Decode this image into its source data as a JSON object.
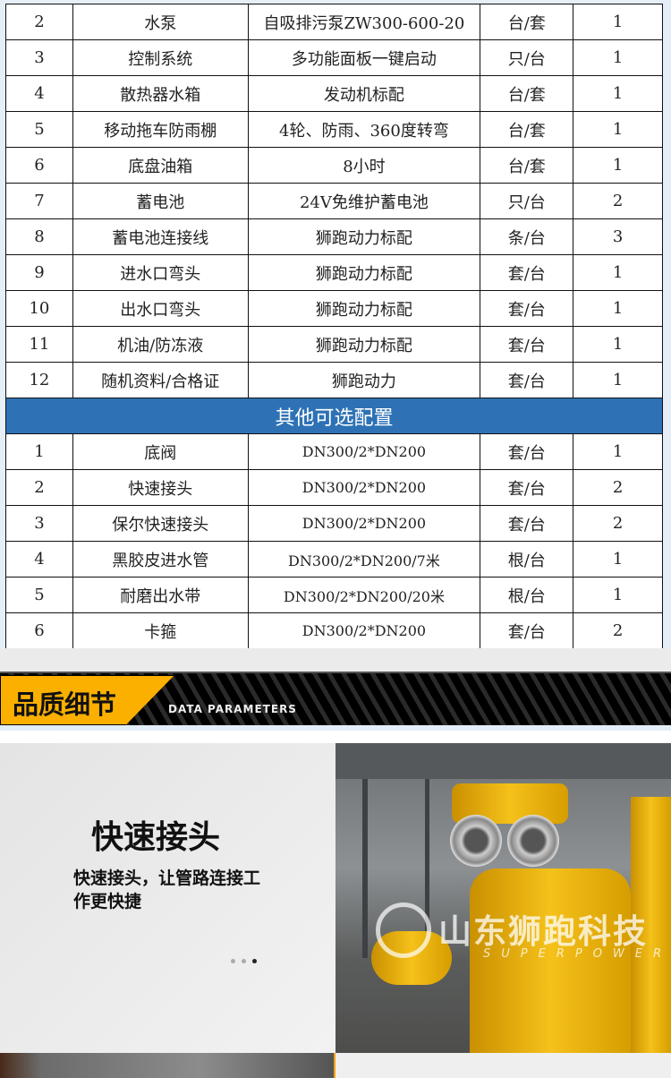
{
  "standard_rows": [
    {
      "no": "2",
      "name": "水泵",
      "spec": "自吸排污泵ZW300-600-20",
      "unit": "台/套",
      "qty": "1"
    },
    {
      "no": "3",
      "name": "控制系统",
      "spec": "多功能面板一键启动",
      "unit": "只/台",
      "qty": "1"
    },
    {
      "no": "4",
      "name": "散热器水箱",
      "spec": "发动机标配",
      "unit": "台/套",
      "qty": "1"
    },
    {
      "no": "5",
      "name": "移动拖车防雨棚",
      "spec": "4轮、防雨、360度转弯",
      "unit": "台/套",
      "qty": "1"
    },
    {
      "no": "6",
      "name": "底盘油箱",
      "spec": "8小时",
      "unit": "台/套",
      "qty": "1"
    },
    {
      "no": "7",
      "name": "蓄电池",
      "spec": "24V免维护蓄电池",
      "unit": "只/台",
      "qty": "2"
    },
    {
      "no": "8",
      "name": "蓄电池连接线",
      "spec": "狮跑动力标配",
      "unit": "条/台",
      "qty": "3"
    },
    {
      "no": "9",
      "name": "进水口弯头",
      "spec": "狮跑动力标配",
      "unit": "套/台",
      "qty": "1"
    },
    {
      "no": "10",
      "name": "出水口弯头",
      "spec": "狮跑动力标配",
      "unit": "套/台",
      "qty": "1"
    },
    {
      "no": "11",
      "name": "机油/防冻液",
      "spec": "狮跑动力标配",
      "unit": "套/台",
      "qty": "1"
    },
    {
      "no": "12",
      "name": "随机资料/合格证",
      "spec": "狮跑动力",
      "unit": "套/台",
      "qty": "1"
    }
  ],
  "optional_section_title": "其他可选配置",
  "optional_rows": [
    {
      "no": "1",
      "name": "底阀",
      "spec": "DN300/2*DN200",
      "unit": "套/台",
      "qty": "1"
    },
    {
      "no": "2",
      "name": "快速接头",
      "spec": "DN300/2*DN200",
      "unit": "套/台",
      "qty": "2"
    },
    {
      "no": "3",
      "name": "保尔快速接头",
      "spec": "DN300/2*DN200",
      "unit": "套/台",
      "qty": "2"
    },
    {
      "no": "4",
      "name": "黑胶皮进水管",
      "spec": "DN300/2*DN200/7米",
      "unit": "根/台",
      "qty": "1"
    },
    {
      "no": "5",
      "name": "耐磨出水带",
      "spec": "DN300/2*DN200/20米",
      "unit": "根/台",
      "qty": "1"
    },
    {
      "no": "6",
      "name": "卡箍",
      "spec": "DN300/2*DN200",
      "unit": "套/台",
      "qty": "2"
    }
  ],
  "banner": {
    "title": "品质细节",
    "subtitle": "DATA PARAMETERS",
    "accent": "#fbb000"
  },
  "feature": {
    "title": "快速接头",
    "description": "快速接头，让管路连接工作更快捷",
    "carousel_active_index": 3,
    "carousel_count": 3
  },
  "watermark": {
    "cn": "山东狮跑科技",
    "en": "SUPERPOWER"
  },
  "colors": {
    "section_header": "#2e72b5",
    "table_bg": "#e6eff8"
  }
}
